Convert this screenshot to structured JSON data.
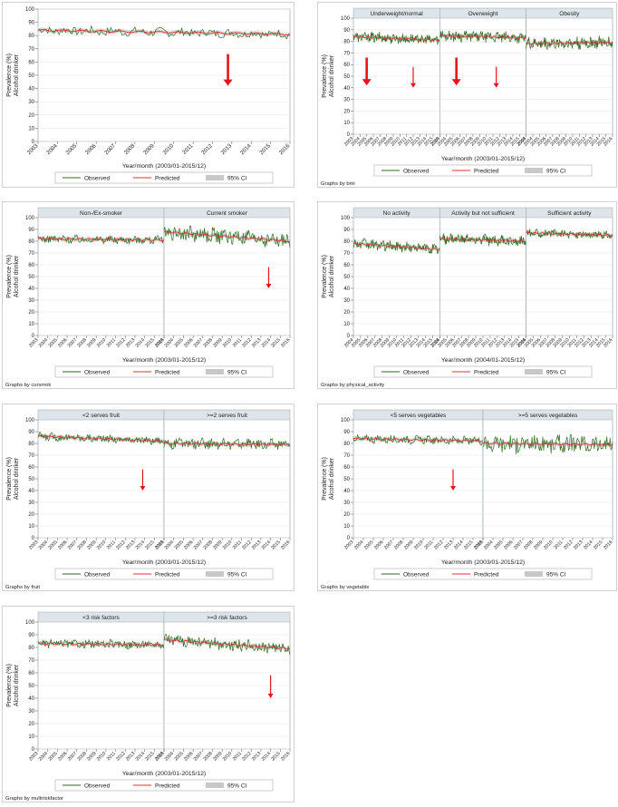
{
  "chart_data": [
    {
      "type": "line",
      "ylabel": "Prevalence (%)\nAlcohol drinker",
      "xlabel": "Year/month (2003/01-2015/12)",
      "ylim": [
        0,
        100
      ],
      "yticks": [
        0,
        10,
        20,
        30,
        40,
        50,
        60,
        70,
        80,
        90,
        100
      ],
      "xticks": [
        "2003",
        "2004",
        "2005",
        "2006",
        "2007",
        "2008",
        "2009",
        "2010",
        "2011",
        "2012",
        "2013",
        "2014",
        "2015",
        "2016"
      ],
      "legend": [
        "Observed",
        "Predicted",
        "95% CI"
      ],
      "byline": "",
      "panels": [
        {
          "title": "",
          "mean": 84,
          "trend": -3,
          "noise": 3,
          "arrows": [
            {
              "x": 2012.8,
              "size": "large"
            }
          ]
        }
      ]
    },
    {
      "type": "line",
      "ylabel": "Prevalence (%)\nAlcohol drinker",
      "xlabel": "Year/month (2003/01-2015/12)",
      "ylim": [
        0,
        100
      ],
      "yticks": [
        0,
        10,
        20,
        30,
        40,
        50,
        60,
        70,
        80,
        90,
        100
      ],
      "xticks": [
        "2003",
        "2004",
        "2005",
        "2006",
        "2007",
        "2008",
        "2009",
        "2010",
        "2011",
        "2012",
        "2013",
        "2014",
        "2015",
        "2016"
      ],
      "legend": [
        "Observed",
        "Predicted",
        "95% CI"
      ],
      "byline": "Graphs by bmi",
      "panels": [
        {
          "title": "Underweight/normal",
          "mean": 84,
          "trend": -3,
          "noise": 4,
          "arrows": [
            {
              "x": 2005.0,
              "size": "large"
            },
            {
              "x": 2012.0,
              "size": "small"
            }
          ]
        },
        {
          "title": "Overweight",
          "mean": 85,
          "trend": -2,
          "noise": 4,
          "arrows": [
            {
              "x": 2005.5,
              "size": "large"
            },
            {
              "x": 2011.5,
              "size": "small"
            }
          ]
        },
        {
          "title": "Obesity",
          "mean": 78,
          "trend": 1,
          "noise": 5,
          "arrows": []
        }
      ]
    },
    {
      "type": "line",
      "ylabel": "Prevalence (%)\nAlcohol drinker",
      "xlabel": "Year/month (2003/01-2015/12)",
      "ylim": [
        0,
        100
      ],
      "yticks": [
        0,
        10,
        20,
        30,
        40,
        50,
        60,
        70,
        80,
        90,
        100
      ],
      "xticks": [
        "2003",
        "2004",
        "2005",
        "2006",
        "2007",
        "2008",
        "2009",
        "2010",
        "2011",
        "2012",
        "2013",
        "2014",
        "2015",
        "2016"
      ],
      "legend": [
        "Observed",
        "Predicted",
        "95% CI"
      ],
      "byline": "Graphs by cursmok",
      "panels": [
        {
          "title": "Non-/Ex-smoker",
          "mean": 82,
          "trend": -1,
          "noise": 3,
          "arrows": []
        },
        {
          "title": "Current smoker",
          "mean": 88,
          "trend": -8,
          "noise": 6,
          "arrows": [
            {
              "x": 2013.8,
              "size": "small"
            }
          ]
        }
      ]
    },
    {
      "type": "line",
      "ylabel": "Prevalence (%)\nAlcohol drinker",
      "xlabel": "Year/month (2004/01-2015/12)",
      "ylim": [
        0,
        100
      ],
      "yticks": [
        0,
        10,
        20,
        30,
        40,
        50,
        60,
        70,
        80,
        90,
        100
      ],
      "xticks": [
        "2004",
        "2005",
        "2006",
        "2007",
        "2008",
        "2009",
        "2010",
        "2011",
        "2012",
        "2013",
        "2014",
        "2015",
        "2016"
      ],
      "legend": [
        "Observed",
        "Predicted",
        "95% CI"
      ],
      "byline": "Graphs by physical_activity",
      "panels": [
        {
          "title": "No activity",
          "mean": 78,
          "trend": -5,
          "noise": 4,
          "arrows": []
        },
        {
          "title": "Activity but not sufficient",
          "mean": 82,
          "trend": -2,
          "noise": 4,
          "arrows": []
        },
        {
          "title": "Sufficient activity",
          "mean": 87,
          "trend": -2,
          "noise": 3,
          "arrows": []
        }
      ]
    },
    {
      "type": "line",
      "ylabel": "Prevalence (%)\nAlcohol drinker",
      "xlabel": "Year/month (2003/01-2015/12)",
      "ylim": [
        0,
        100
      ],
      "yticks": [
        0,
        10,
        20,
        30,
        40,
        50,
        60,
        70,
        80,
        90,
        100
      ],
      "xticks": [
        "2003",
        "2004",
        "2005",
        "2006",
        "2007",
        "2008",
        "2009",
        "2010",
        "2011",
        "2012",
        "2013",
        "2014",
        "2015",
        "2016"
      ],
      "legend": [
        "Observed",
        "Predicted",
        "95% CI"
      ],
      "byline": "Graphs by fruit",
      "panels": [
        {
          "title": "<2 serves fruit",
          "mean": 86,
          "trend": -4,
          "noise": 3,
          "arrows": [
            {
              "x": 2013.8,
              "size": "small"
            }
          ]
        },
        {
          "title": ">=2 serves fruit",
          "mean": 80,
          "trend": -1,
          "noise": 4,
          "arrows": []
        }
      ]
    },
    {
      "type": "line",
      "ylabel": "Prevalence (%)\nAlcohol drinker",
      "xlabel": "Year/month (2003/01-2015/12)",
      "ylim": [
        0,
        100
      ],
      "yticks": [
        0,
        10,
        20,
        30,
        40,
        50,
        60,
        70,
        80,
        90,
        100
      ],
      "xticks": [
        "2003",
        "2004",
        "2005",
        "2006",
        "2007",
        "2008",
        "2009",
        "2010",
        "2011",
        "2012",
        "2013",
        "2014",
        "2015",
        "2016"
      ],
      "legend": [
        "Observed",
        "Predicted",
        "95% CI"
      ],
      "byline": "Graphs by vegetable",
      "panels": [
        {
          "title": "<5 serves vegetables",
          "mean": 84,
          "trend": -2,
          "noise": 3,
          "arrows": [
            {
              "x": 2013.0,
              "size": "small"
            }
          ]
        },
        {
          "title": ">=5 serves vegetables",
          "mean": 80,
          "trend": -1,
          "noise": 7,
          "arrows": []
        }
      ]
    },
    {
      "type": "line",
      "ylabel": "Prevalence (%)\nAlcohol drinker",
      "xlabel": "Year/month (2003/01-2015/12)",
      "ylim": [
        0,
        100
      ],
      "yticks": [
        0,
        10,
        20,
        30,
        40,
        50,
        60,
        70,
        80,
        90,
        100
      ],
      "xticks": [
        "2003",
        "2004",
        "2005",
        "2006",
        "2007",
        "2008",
        "2009",
        "2010",
        "2011",
        "2012",
        "2013",
        "2014",
        "2015",
        "2016"
      ],
      "legend": [
        "Observed",
        "Predicted",
        "95% CI"
      ],
      "byline": "Graphs by multiriskfactor",
      "panels": [
        {
          "title": "<3 risk factors",
          "mean": 83,
          "trend": -1,
          "noise": 3,
          "arrows": []
        },
        {
          "title": ">=3 risk factors",
          "mean": 86,
          "trend": -7,
          "noise": 4,
          "arrows": [
            {
              "x": 2014.0,
              "size": "small"
            }
          ]
        }
      ]
    }
  ],
  "colors": {
    "observed": "#2e6b1f",
    "predicted": "#e03030",
    "ci": "#c8c8c8",
    "arrow": "#e8141c",
    "strip": "#dde5ea",
    "plotbg": "#ffffff",
    "border": "#9aa6ad"
  }
}
